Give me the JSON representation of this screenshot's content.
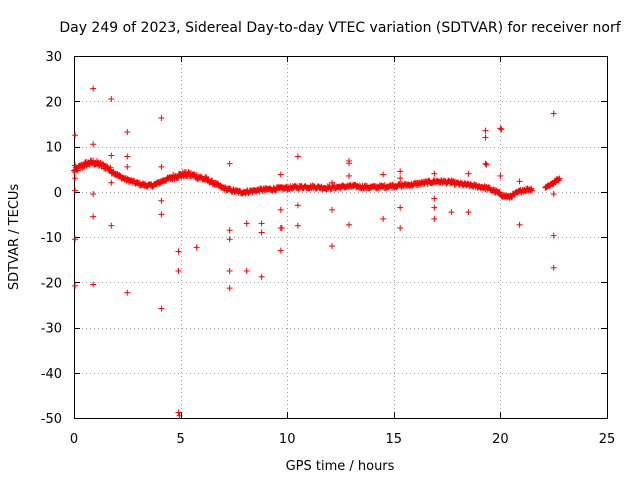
{
  "chart_data": {
    "type": "scatter",
    "title": "Day 249 of 2023, Sidereal Day-to-day VTEC variation (SDTVAR) for receiver norf",
    "xlabel": "GPS time / hours",
    "ylabel": "SDTVAR / TECUs",
    "xlim": [
      0,
      25
    ],
    "ylim": [
      -50,
      30
    ],
    "xticks": [
      0,
      5,
      10,
      15,
      20,
      25
    ],
    "yticks": [
      30,
      20,
      10,
      0,
      -10,
      -20,
      -30,
      -40,
      -50
    ],
    "grid": true,
    "marker": "+",
    "color": "#ff0000",
    "series": [
      {
        "name": "SDTVAR",
        "trend": [
          [
            0.0,
            4.5
          ],
          [
            0.3,
            5.5
          ],
          [
            0.6,
            6.2
          ],
          [
            0.9,
            6.5
          ],
          [
            1.2,
            6.0
          ],
          [
            1.5,
            5.5
          ],
          [
            1.8,
            4.5
          ],
          [
            2.1,
            3.5
          ],
          [
            2.4,
            2.8
          ],
          [
            2.7,
            2.3
          ],
          [
            3.0,
            1.8
          ],
          [
            3.3,
            1.5
          ],
          [
            3.6,
            1.3
          ],
          [
            3.9,
            1.8
          ],
          [
            4.2,
            2.5
          ],
          [
            4.5,
            3.0
          ],
          [
            4.8,
            3.5
          ],
          [
            5.1,
            3.8
          ],
          [
            5.4,
            3.8
          ],
          [
            5.7,
            3.5
          ],
          [
            6.0,
            3.0
          ],
          [
            6.3,
            2.5
          ],
          [
            6.6,
            1.8
          ],
          [
            6.9,
            1.0
          ],
          [
            7.2,
            0.5
          ],
          [
            7.5,
            0.2
          ],
          [
            7.8,
            -0.1
          ],
          [
            8.1,
            0.0
          ],
          [
            8.4,
            0.2
          ],
          [
            8.7,
            0.4
          ],
          [
            9.0,
            0.5
          ],
          [
            9.3,
            0.6
          ],
          [
            9.6,
            0.7
          ],
          [
            9.9,
            0.8
          ],
          [
            10.2,
            0.9
          ],
          [
            10.5,
            1.0
          ],
          [
            10.8,
            1.1
          ],
          [
            11.1,
            1.1
          ],
          [
            11.4,
            1.0
          ],
          [
            11.7,
            0.9
          ],
          [
            12.0,
            0.9
          ],
          [
            12.3,
            1.0
          ],
          [
            12.6,
            1.1
          ],
          [
            12.9,
            1.2
          ],
          [
            13.2,
            1.2
          ],
          [
            13.5,
            1.1
          ],
          [
            13.8,
            1.0
          ],
          [
            14.1,
            1.0
          ],
          [
            14.4,
            1.1
          ],
          [
            14.7,
            1.2
          ],
          [
            15.0,
            1.3
          ],
          [
            15.3,
            1.4
          ],
          [
            15.6,
            1.5
          ],
          [
            15.9,
            1.6
          ],
          [
            16.2,
            1.8
          ],
          [
            16.5,
            2.0
          ],
          [
            16.8,
            2.2
          ],
          [
            17.1,
            2.3
          ],
          [
            17.4,
            2.2
          ],
          [
            17.7,
            2.0
          ],
          [
            18.0,
            1.8
          ],
          [
            18.3,
            1.6
          ],
          [
            18.6,
            1.4
          ],
          [
            18.9,
            1.2
          ],
          [
            19.2,
            1.0
          ],
          [
            19.5,
            0.6
          ],
          [
            19.8,
            0.0
          ],
          [
            20.1,
            -0.8
          ],
          [
            20.4,
            -1.2
          ],
          [
            20.7,
            -0.5
          ],
          [
            21.0,
            0.3
          ],
          [
            21.3,
            0.5
          ],
          [
            21.6,
            0.6
          ],
          [
            21.9,
            0.8
          ],
          [
            22.2,
            1.2
          ],
          [
            22.5,
            2.0
          ],
          [
            22.8,
            3.0
          ]
        ],
        "gaps": [
          [
            21.5,
            22.1
          ]
        ],
        "outliers": [
          [
            0.05,
            12.5
          ],
          [
            0.05,
            5.8
          ],
          [
            0.05,
            3.0
          ],
          [
            0.05,
            0.3
          ],
          [
            0.05,
            -10.5
          ],
          [
            0.05,
            -20.8
          ],
          [
            0.9,
            22.8
          ],
          [
            0.9,
            10.5
          ],
          [
            0.9,
            -0.5
          ],
          [
            0.9,
            -5.5
          ],
          [
            0.9,
            -20.5
          ],
          [
            1.75,
            20.5
          ],
          [
            1.75,
            8.0
          ],
          [
            1.75,
            2.0
          ],
          [
            1.75,
            -7.5
          ],
          [
            2.5,
            13.2
          ],
          [
            2.5,
            7.8
          ],
          [
            2.5,
            5.5
          ],
          [
            2.5,
            -22.3
          ],
          [
            4.1,
            16.3
          ],
          [
            4.1,
            5.5
          ],
          [
            4.1,
            -2.0
          ],
          [
            4.1,
            -5.0
          ],
          [
            4.1,
            -25.8
          ],
          [
            4.9,
            -13.2
          ],
          [
            4.9,
            -17.5
          ],
          [
            4.9,
            -48.8
          ],
          [
            4.95,
            -49.5
          ],
          [
            5.75,
            -12.3
          ],
          [
            7.3,
            6.2
          ],
          [
            7.3,
            -8.5
          ],
          [
            7.3,
            -10.5
          ],
          [
            7.3,
            -17.5
          ],
          [
            7.3,
            -21.3
          ],
          [
            8.1,
            -7.0
          ],
          [
            8.1,
            -17.5
          ],
          [
            8.8,
            -7.0
          ],
          [
            8.8,
            -9.0
          ],
          [
            8.8,
            -18.8
          ],
          [
            9.7,
            3.8
          ],
          [
            9.7,
            -4.0
          ],
          [
            9.7,
            -8.0
          ],
          [
            9.75,
            -8.0
          ],
          [
            9.7,
            -13.0
          ],
          [
            10.5,
            7.8
          ],
          [
            10.5,
            -3.0
          ],
          [
            10.5,
            -7.5
          ],
          [
            12.1,
            2.0
          ],
          [
            12.1,
            -4.0
          ],
          [
            12.1,
            -12.0
          ],
          [
            12.9,
            6.8
          ],
          [
            12.9,
            6.3
          ],
          [
            12.9,
            3.5
          ],
          [
            12.9,
            -7.3
          ],
          [
            14.5,
            3.8
          ],
          [
            14.5,
            -6.0
          ],
          [
            15.3,
            4.5
          ],
          [
            15.3,
            3.0
          ],
          [
            15.3,
            -3.5
          ],
          [
            15.3,
            -8.0
          ],
          [
            16.9,
            4.0
          ],
          [
            16.9,
            -1.5
          ],
          [
            16.9,
            -3.5
          ],
          [
            16.9,
            -6.0
          ],
          [
            17.7,
            2.5
          ],
          [
            17.7,
            -4.5
          ],
          [
            18.5,
            4.0
          ],
          [
            18.5,
            -4.5
          ],
          [
            19.3,
            13.5
          ],
          [
            19.3,
            12.0
          ],
          [
            19.3,
            6.2
          ],
          [
            19.35,
            6.0
          ],
          [
            20.0,
            14.0
          ],
          [
            20.05,
            13.8
          ],
          [
            20.0,
            3.5
          ],
          [
            20.9,
            2.3
          ],
          [
            20.9,
            -7.3
          ],
          [
            22.5,
            17.3
          ],
          [
            22.5,
            -0.5
          ],
          [
            22.5,
            -9.7
          ],
          [
            22.5,
            -16.8
          ]
        ]
      }
    ]
  }
}
